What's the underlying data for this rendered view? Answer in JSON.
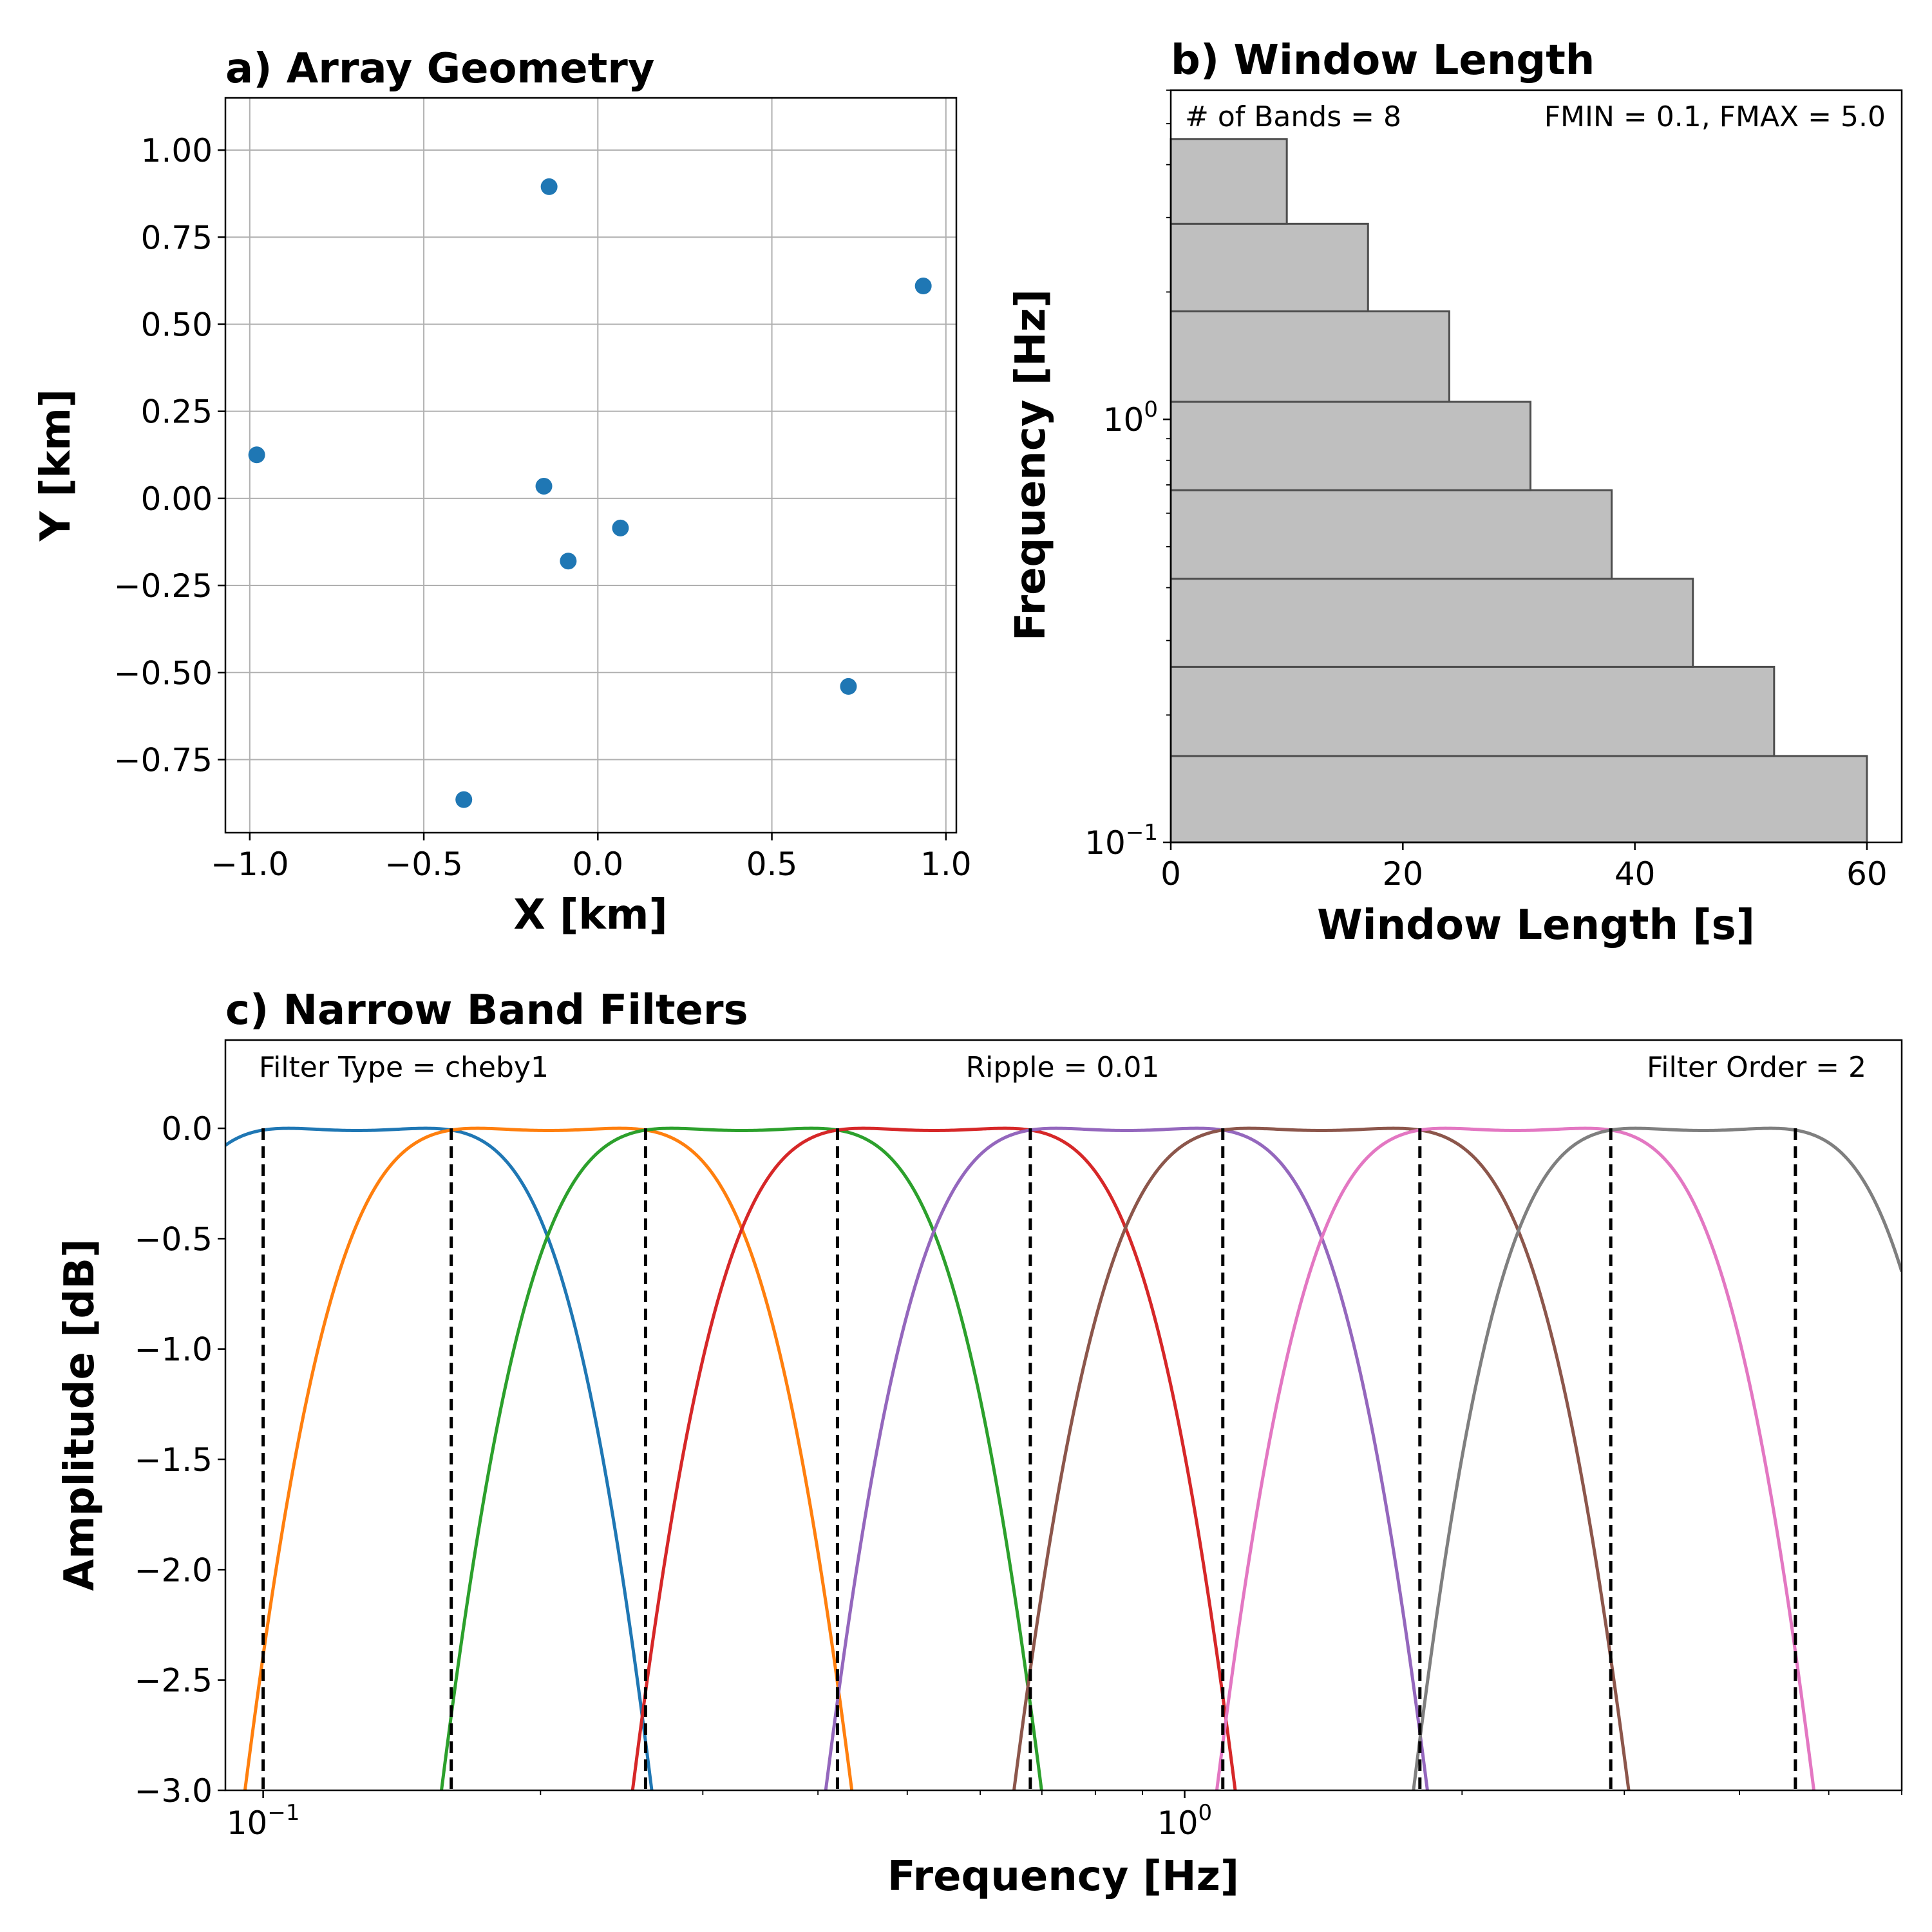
{
  "chart_data": [
    {
      "panel": "a",
      "type": "scatter",
      "title": "a) Array Geometry",
      "xlabel": "X [km]",
      "ylabel": "Y [km]",
      "xlim": [
        -1.07,
        1.03
      ],
      "ylim": [
        -0.96,
        1.15
      ],
      "grid": true,
      "xticks": [
        -1.0,
        -0.5,
        0.0,
        0.5,
        1.0
      ],
      "xtick_labels": [
        "−1.0",
        "−0.5",
        "0.0",
        "0.5",
        "1.0"
      ],
      "yticks": [
        1.0,
        0.75,
        0.5,
        0.25,
        0.0,
        -0.25,
        -0.5,
        -0.75
      ],
      "ytick_labels": [
        "1.00",
        "0.75",
        "0.50",
        "0.25",
        "0.00",
        "−0.25",
        "−0.50",
        "−0.75"
      ],
      "color": "#1f77b4",
      "points": [
        {
          "x": -0.98,
          "y": 0.125
        },
        {
          "x": -0.14,
          "y": 0.895
        },
        {
          "x": 0.935,
          "y": 0.61
        },
        {
          "x": -0.155,
          "y": 0.035
        },
        {
          "x": 0.065,
          "y": -0.085
        },
        {
          "x": -0.085,
          "y": -0.18
        },
        {
          "x": 0.72,
          "y": -0.54
        },
        {
          "x": -0.385,
          "y": -0.865
        }
      ]
    },
    {
      "panel": "b",
      "type": "bar",
      "orientation": "horizontal",
      "title": "b) Window Length",
      "xlabel": "Window Length [s]",
      "ylabel": "Frequency [Hz]",
      "xlim": [
        0,
        63
      ],
      "ylim": [
        0.1,
        6.0
      ],
      "yscale": "log",
      "xticks": [
        0,
        20,
        40,
        60
      ],
      "xtick_labels": [
        "0",
        "20",
        "40",
        "60"
      ],
      "ytick_major_labels": [
        {
          "value": 1.0,
          "base": "10",
          "exp": "0"
        },
        {
          "value": 0.1,
          "base": "10",
          "exp": "−1"
        }
      ],
      "annotations": [
        "# of Bands = 8",
        "FMIN = 0.1, FMAX = 5.0"
      ],
      "bars": [
        {
          "f_low": 0.1,
          "f_high": 0.16,
          "window": 60
        },
        {
          "f_low": 0.16,
          "f_high": 0.26,
          "window": 52
        },
        {
          "f_low": 0.26,
          "f_high": 0.42,
          "window": 45
        },
        {
          "f_low": 0.42,
          "f_high": 0.68,
          "window": 38
        },
        {
          "f_low": 0.68,
          "f_high": 1.1,
          "window": 31
        },
        {
          "f_low": 1.1,
          "f_high": 1.8,
          "window": 24
        },
        {
          "f_low": 1.8,
          "f_high": 2.9,
          "window": 17
        },
        {
          "f_low": 2.9,
          "f_high": 4.6,
          "window": 10
        }
      ]
    },
    {
      "panel": "c",
      "type": "line",
      "title": "c) Narrow Band Filters",
      "xlabel": "Frequency [Hz]",
      "ylabel": "Amplitude [dB]",
      "xscale": "log",
      "xlim": [
        0.091,
        6.0
      ],
      "ylim": [
        -3.0,
        0.4
      ],
      "yticks": [
        0.0,
        -0.5,
        -1.0,
        -1.5,
        -2.0,
        -2.5,
        -3.0
      ],
      "ytick_labels": [
        "0.0",
        "−0.5",
        "−1.0",
        "−1.5",
        "−2.0",
        "−2.5",
        "−3.0"
      ],
      "xtick_major_labels": [
        {
          "value": 0.1,
          "base": "10",
          "exp": "−1"
        },
        {
          "value": 1.0,
          "base": "10",
          "exp": "0"
        }
      ],
      "annotations": [
        "Filter Type = cheby1",
        "Ripple = 0.01",
        "Filter Order = 2"
      ],
      "band_edges": [
        0.1,
        0.16,
        0.26,
        0.42,
        0.68,
        1.1,
        1.8,
        2.9,
        4.6
      ],
      "filter": {
        "type": "cheby1",
        "order": 2,
        "ripple_db": 0.01
      },
      "series": [
        {
          "band": [
            0.1,
            0.16
          ],
          "color": "#1f77b4"
        },
        {
          "band": [
            0.16,
            0.26
          ],
          "color": "#ff7f0e"
        },
        {
          "band": [
            0.26,
            0.42
          ],
          "color": "#2ca02c"
        },
        {
          "band": [
            0.42,
            0.68
          ],
          "color": "#d62728"
        },
        {
          "band": [
            0.68,
            1.1
          ],
          "color": "#9467bd"
        },
        {
          "band": [
            1.1,
            1.8
          ],
          "color": "#8c564b"
        },
        {
          "band": [
            1.8,
            2.9
          ],
          "color": "#e377c2"
        },
        {
          "band": [
            2.9,
            4.6
          ],
          "color": "#7f7f7f"
        }
      ]
    }
  ]
}
